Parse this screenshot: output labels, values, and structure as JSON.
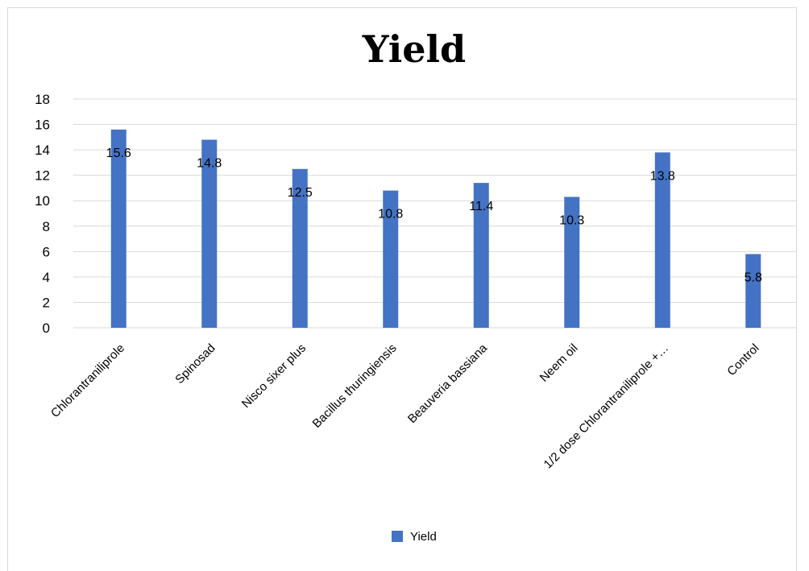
{
  "chart_data": {
    "type": "bar",
    "title": "Yield",
    "xlabel": "",
    "ylabel": "",
    "ylim": [
      0,
      18
    ],
    "yticks": [
      0,
      2,
      4,
      6,
      8,
      10,
      12,
      14,
      16,
      18
    ],
    "grid": true,
    "legend": "bottom",
    "categories": [
      "Chlorantraniliprole",
      "Spinosad",
      "Nisco sixer plus",
      "Bacillus thuringiensis",
      "Beauveria bassiana",
      "Neem oil",
      "1/2 dose Chlorantraniliprole +…",
      "Control"
    ],
    "series": [
      {
        "name": "Yield",
        "color": "#4472C4",
        "values": [
          15.6,
          14.8,
          12.5,
          10.8,
          11.4,
          10.3,
          13.8,
          5.8
        ],
        "labels": [
          "15.6",
          "14.8",
          "12.5",
          "10.8",
          "11.4",
          "10.3",
          "13.8",
          "5.8"
        ]
      }
    ]
  }
}
